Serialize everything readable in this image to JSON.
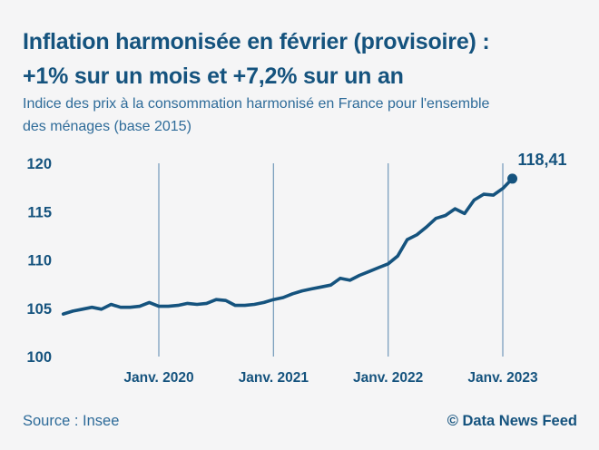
{
  "header": {
    "title_line1": "Inflation harmonisée en février (provisoire) :",
    "title_line2": "+1% sur un mois et +7,2% sur un an",
    "subtitle_line1": "Indice des prix à la consommation harmonisé en France pour l'ensemble",
    "subtitle_line2": "des ménages (base 2015)"
  },
  "footer": {
    "source": "Source : Insee",
    "copyright": "© Data News Feed"
  },
  "colors": {
    "background": "#f5f5f6",
    "primary_blue": "#15537e",
    "subtitle_blue": "#2e6b99",
    "gridline_blue": "#7b9fbe"
  },
  "chart_data": {
    "type": "line",
    "title": "Indice des prix à la consommation harmonisé en France pour l'ensemble des ménages (base 2015)",
    "x_months": [
      "2019-03",
      "2019-04",
      "2019-05",
      "2019-06",
      "2019-07",
      "2019-08",
      "2019-09",
      "2019-10",
      "2019-11",
      "2019-12",
      "2020-01",
      "2020-02",
      "2020-03",
      "2020-04",
      "2020-05",
      "2020-06",
      "2020-07",
      "2020-08",
      "2020-09",
      "2020-10",
      "2020-11",
      "2020-12",
      "2021-01",
      "2021-02",
      "2021-03",
      "2021-04",
      "2021-05",
      "2021-06",
      "2021-07",
      "2021-08",
      "2021-09",
      "2021-10",
      "2021-11",
      "2021-12",
      "2022-01",
      "2022-02",
      "2022-03",
      "2022-04",
      "2022-05",
      "2022-06",
      "2022-07",
      "2022-08",
      "2022-09",
      "2022-10",
      "2022-11",
      "2022-12",
      "2023-01",
      "2023-02"
    ],
    "values": [
      104.4,
      104.7,
      104.9,
      105.1,
      104.9,
      105.4,
      105.1,
      105.1,
      105.2,
      105.6,
      105.2,
      105.2,
      105.3,
      105.5,
      105.4,
      105.5,
      105.9,
      105.8,
      105.3,
      105.3,
      105.4,
      105.6,
      105.9,
      106.1,
      106.5,
      106.8,
      107.0,
      107.2,
      107.4,
      108.1,
      107.9,
      108.4,
      108.8,
      109.2,
      109.6,
      110.4,
      112.1,
      112.6,
      113.4,
      114.3,
      114.6,
      115.3,
      114.8,
      116.2,
      116.8,
      116.7,
      117.4,
      118.41
    ],
    "y_ticks": [
      100,
      105,
      110,
      115,
      120
    ],
    "ylim": [
      100,
      120
    ],
    "x_tick_labels": [
      "Janv. 2020",
      "Janv. 2021",
      "Janv. 2022",
      "Janv. 2023"
    ],
    "x_tick_month_indices": [
      10,
      22,
      34,
      46
    ],
    "end_label": "118,41",
    "grid": "vertical-only",
    "legend": "none",
    "line_color": "#15537e"
  }
}
